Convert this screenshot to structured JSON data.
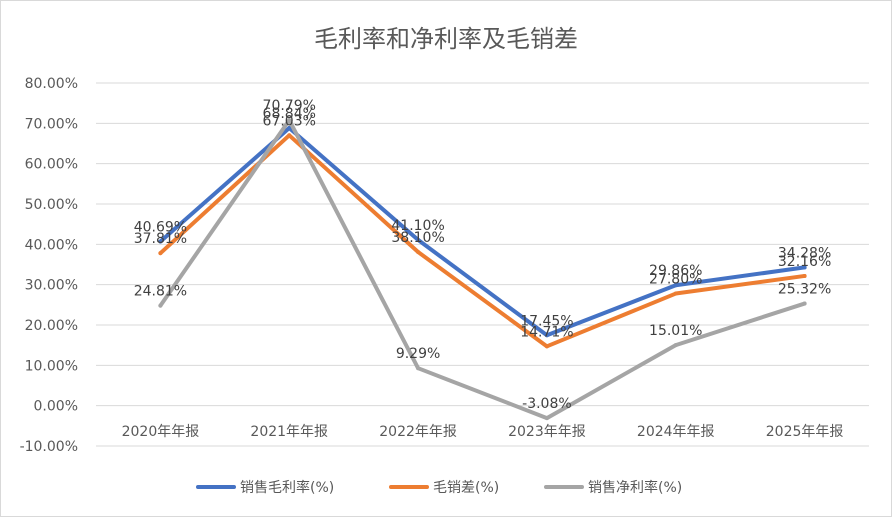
{
  "chart_data": {
    "type": "line",
    "title": "毛利率和净利率及毛销差",
    "categories": [
      "2020年年报",
      "2021年年报",
      "2022年年报",
      "2023年年报",
      "2024年年报",
      "2025年年报"
    ],
    "y_ticks": [
      "80.00%",
      "70.00%",
      "60.00%",
      "50.00%",
      "40.00%",
      "30.00%",
      "20.00%",
      "10.00%",
      "0.00%",
      "-10.00%"
    ],
    "ylim": [
      -10,
      80
    ],
    "grid": true,
    "legend_position": "bottom",
    "series": [
      {
        "name": "销售毛利率(%)",
        "color": "#4472c4",
        "values": [
          40.69,
          68.84,
          41.1,
          17.45,
          29.86,
          34.28
        ],
        "labels": [
          "40.69%",
          "68.84%",
          "41.10%",
          "17.45%",
          "29.86%",
          "34.28%"
        ]
      },
      {
        "name": "毛销差(%)",
        "color": "#ed7d31",
        "values": [
          37.81,
          67.03,
          38.1,
          14.71,
          27.8,
          32.16
        ],
        "labels": [
          "37.81%",
          "67.03%",
          "38.10%",
          "14.71%",
          "27.80%",
          "32.16%"
        ]
      },
      {
        "name": "销售净利率(%)",
        "color": "#a5a5a5",
        "values": [
          24.81,
          70.79,
          9.29,
          -3.08,
          15.01,
          25.32
        ],
        "labels": [
          "24.81%",
          "70.79%",
          "9.29%",
          "-3.08%",
          "15.01%",
          "25.32%"
        ]
      }
    ]
  }
}
